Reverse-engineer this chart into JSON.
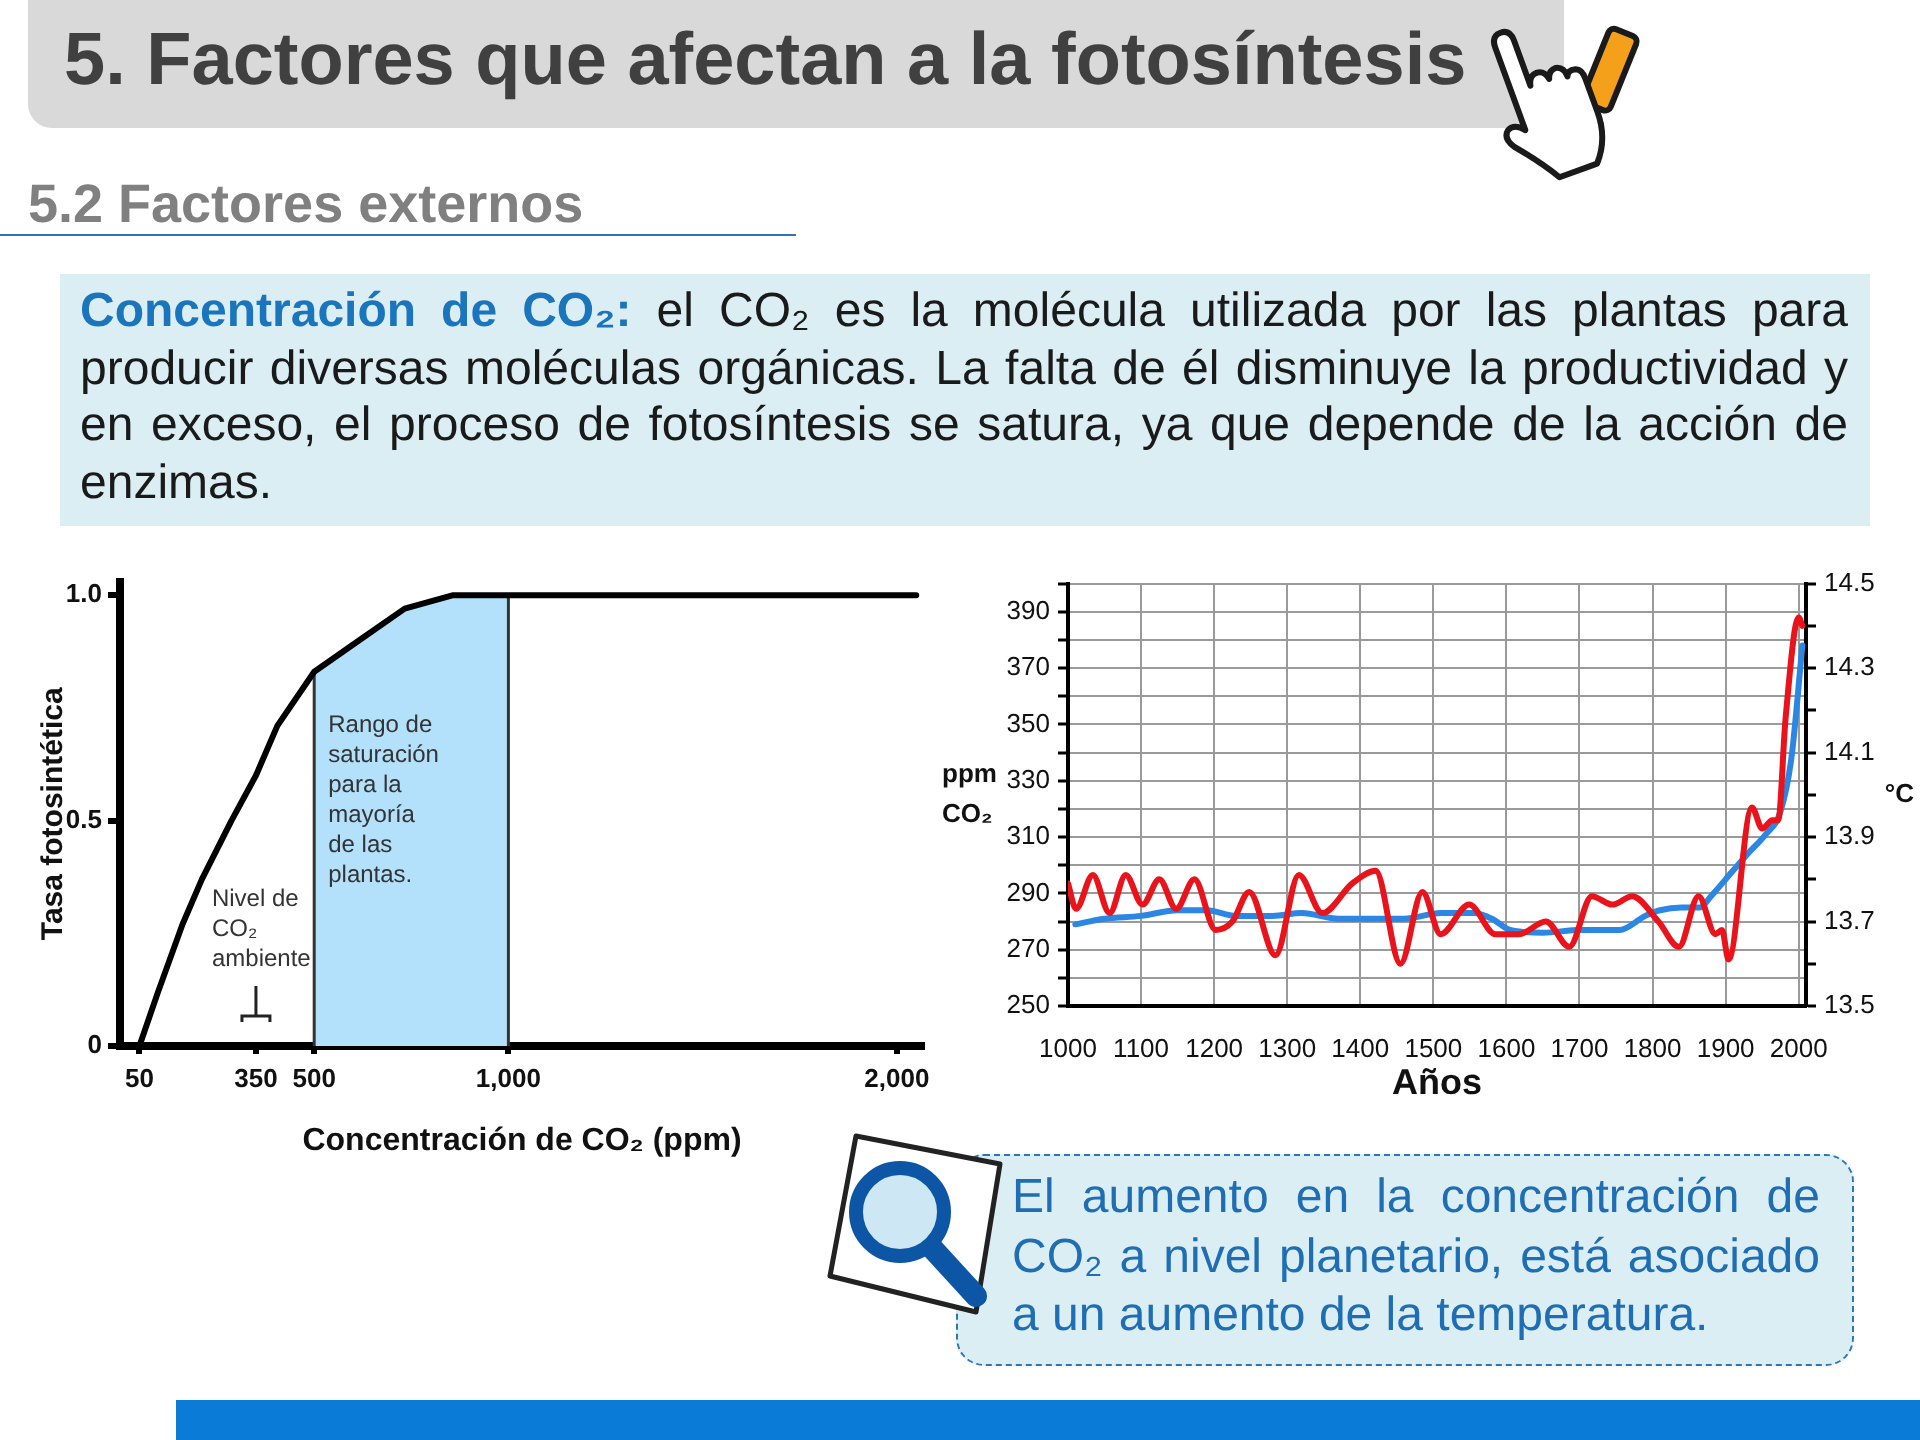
{
  "chart_data": [
    {
      "type": "other",
      "title": "5. Factores que afectan a la fotosíntesis",
      "subtitle": "5.2 Factores externos",
      "annotations": [
        "Concentración de CO₂:",
        "el CO₂ es la molécula utilizada por las plantas para producir diversas moléculas orgánicas. La falta de él disminuye la productividad y en exceso, el proceso de fotosíntesis se satura, ya que depende de la acción de enzimas."
      ]
    },
    {
      "type": "line",
      "xlabel": "Concentración de CO₂ (ppm)",
      "ylabel": "Tasa fotosintética",
      "series": [
        {
          "color": "#000000",
          "x": [
            50,
            98,
            161,
            211,
            287,
            350,
            405,
            500,
            616,
            733,
            858,
            2050
          ],
          "values": [
            0,
            0.12,
            0.27,
            0.37,
            0.5,
            0.6,
            0.71,
            0.83,
            0.9,
            0.97,
            1,
            1
          ]
        }
      ],
      "xlim": [
        0,
        2070
      ],
      "xticks": [
        50,
        350,
        500,
        {
          "value": 1000,
          "label": "1,000"
        },
        {
          "value": 2000,
          "label": "2,000"
        }
      ],
      "ylim": [
        0,
        1.03
      ],
      "yticks": [
        0,
        0.5,
        {
          "value": 1,
          "label": "1.0"
        }
      ],
      "ref_lines": [
        {
          "axis": "x",
          "value": 350,
          "label": "Nivel de CO₂ ambiente"
        }
      ],
      "bands": [
        {
          "axis": "x",
          "from": 500,
          "to": 1000,
          "label": "Rango de saturación para la mayoría de las plantas.",
          "color": "#b3e0fa"
        }
      ]
    },
    {
      "type": "line",
      "xlabel": "Años",
      "ylabel": "ppm CO₂",
      "y2label": "°C",
      "series": [
        {
          "color": "#2b86e4",
          "x": [
            1010,
            1050,
            1100,
            1150,
            1190,
            1230,
            1280,
            1320,
            1370,
            1420,
            1460,
            1510,
            1555,
            1580,
            1605,
            1650,
            1700,
            1755,
            1790,
            1810,
            1840,
            1865,
            1880,
            1910,
            1930,
            1955,
            1975,
            1990,
            2005
          ],
          "values": [
            279,
            281,
            282,
            284,
            284,
            282,
            282,
            283,
            281,
            281,
            281,
            283,
            283,
            281,
            277,
            276,
            277,
            277,
            282,
            284,
            285,
            285,
            289,
            298,
            304,
            311,
            319,
            338,
            378
          ]
        },
        {
          "color": "#e8131b",
          "axis": "y2",
          "x": [
            1000,
            1011,
            1034,
            1057,
            1079,
            1102,
            1125,
            1148,
            1173,
            1202,
            1225,
            1248,
            1284,
            1316,
            1348,
            1389,
            1421,
            1455,
            1485,
            1510,
            1549,
            1585,
            1617,
            1654,
            1686,
            1717,
            1745,
            1772,
            1808,
            1836,
            1863,
            1886,
            1895,
            1904,
            1936,
            1950,
            1964,
            1972,
            1982,
            2000,
            2005
          ],
          "values": [
            13.79,
            13.73,
            13.81,
            13.72,
            13.81,
            13.74,
            13.8,
            13.73,
            13.8,
            13.68,
            13.7,
            13.77,
            13.62,
            13.81,
            13.72,
            13.79,
            13.82,
            13.6,
            13.77,
            13.67,
            13.74,
            13.67,
            13.67,
            13.7,
            13.64,
            13.76,
            13.74,
            13.76,
            13.7,
            13.64,
            13.76,
            13.67,
            13.68,
            13.61,
            13.97,
            13.92,
            13.94,
            13.94,
            14.18,
            14.42,
            14.4
          ]
        }
      ],
      "xlim": [
        1000,
        2010
      ],
      "xticks": [
        1000,
        1100,
        1200,
        1300,
        1400,
        1500,
        1600,
        1700,
        1800,
        1900,
        2000
      ],
      "ylim": [
        250,
        400
      ],
      "yticks": [
        250,
        {
          "value": 260,
          "label": null
        },
        270,
        {
          "value": 280,
          "label": null
        },
        290,
        {
          "value": 300,
          "label": null
        },
        310,
        {
          "value": 320,
          "label": null
        },
        330,
        {
          "value": 340,
          "label": null
        },
        350,
        {
          "value": 360,
          "label": null
        },
        370,
        {
          "value": 380,
          "label": null
        },
        390,
        {
          "value": 400,
          "label": null
        }
      ],
      "y2lim": [
        13.5,
        14.5
      ],
      "y2ticks": [
        13.5,
        {
          "value": 13.6,
          "label": null
        },
        13.7,
        {
          "value": 13.8,
          "label": null
        },
        13.9,
        {
          "value": 14,
          "label": null
        },
        14.1,
        {
          "value": 14.2,
          "label": null
        },
        14.3,
        {
          "value": 14.4,
          "label": null
        },
        14.5
      ],
      "grid": true
    },
    {
      "type": "other",
      "annotations": [
        "El aumento en la concentración de CO₂ a nivel planetario, está asociado a un aumento de la temperatura."
      ]
    }
  ]
}
